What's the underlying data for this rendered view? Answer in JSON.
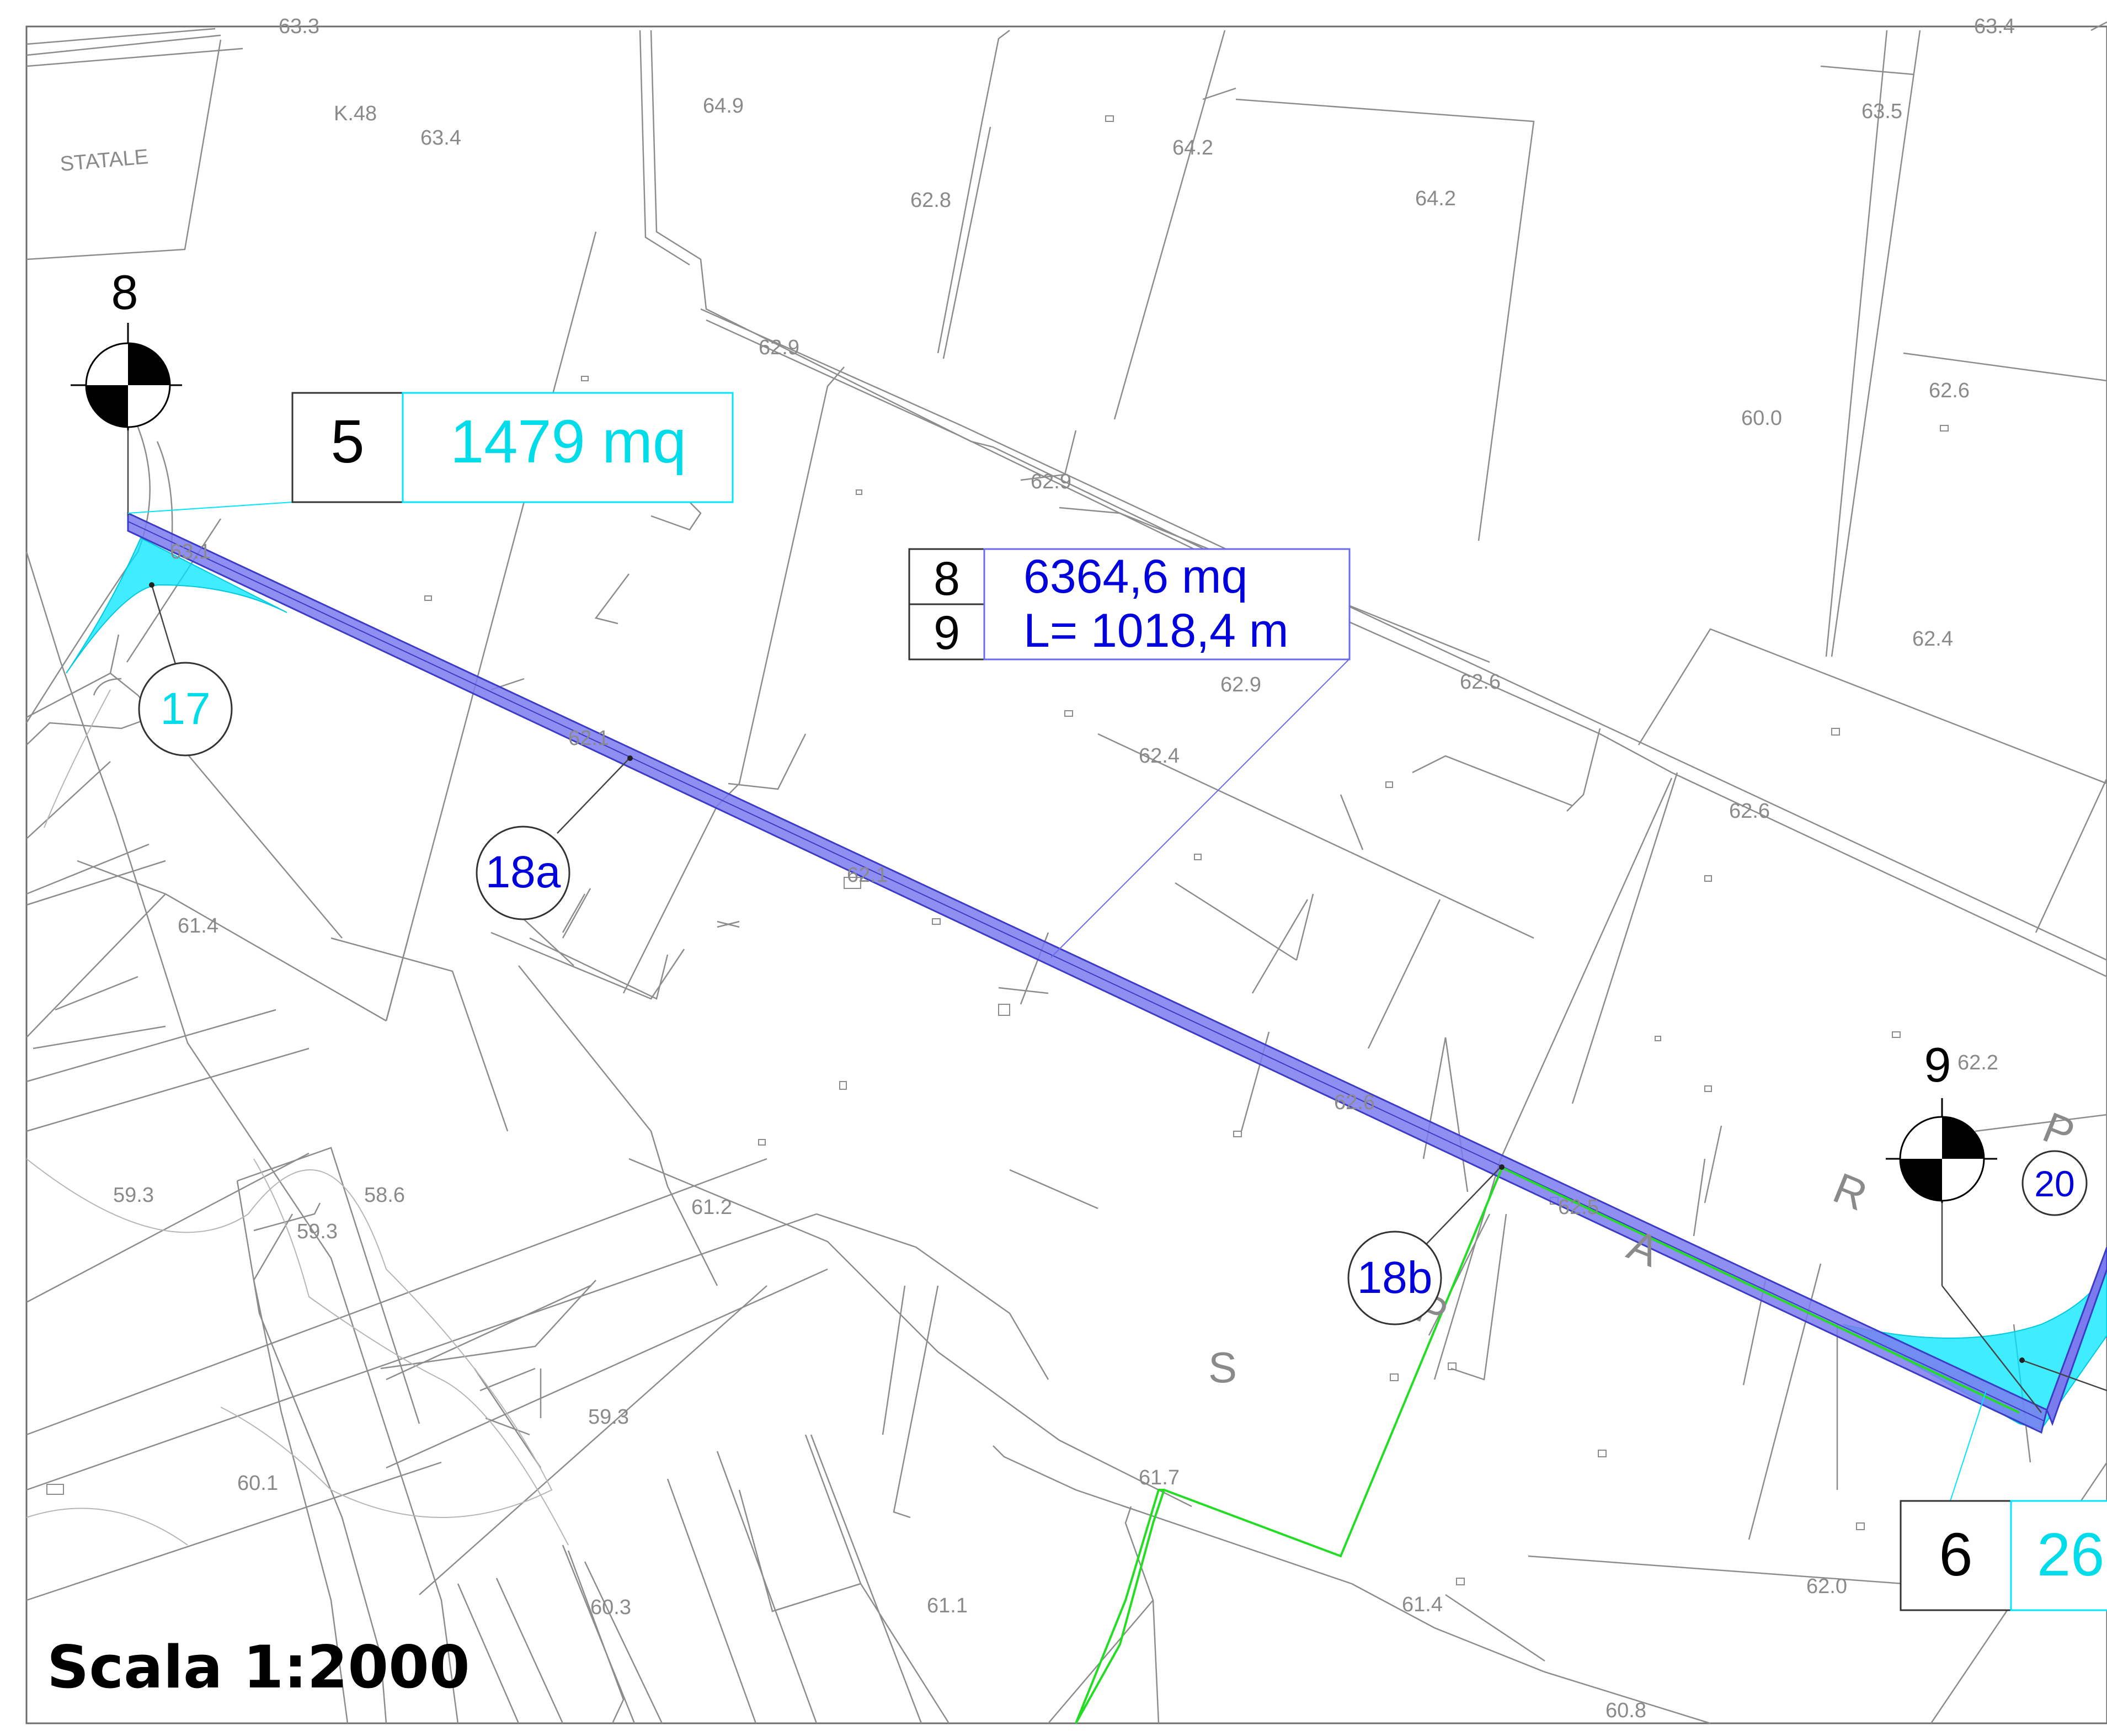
{
  "scale_label": "Scala 1:2000",
  "colors": {
    "parcel_lines": "#8c8c8c",
    "strip_fill": "#7b7bee",
    "strip_stroke": "#3b3bc8",
    "cyan_area": "#00e5ff",
    "cyan_text": "#00dcea",
    "blue_text": "#0000dd",
    "green_boundary": "#22dd22"
  },
  "elevations": [
    "63.3",
    "63.4",
    "64.9",
    "64.2",
    "64.2",
    "62.8",
    "63.5",
    "62.9",
    "62.9",
    "62.6",
    "60.0",
    "63.1",
    "62.1",
    "62.1",
    "62.4",
    "62.9",
    "62.6",
    "62.4",
    "62.6",
    "61.4",
    "62.6",
    "62.2",
    "62.5",
    "59.3",
    "58.6",
    "59.3",
    "61.2",
    "59.3",
    "60.1",
    "61.7",
    "61.4",
    "60.3",
    "61.1",
    "62.0",
    "60.8",
    "63.4"
  ],
  "place_labels": {
    "statale": "STATALE",
    "km": "K.48"
  },
  "road_letters": [
    "S",
    "P",
    "A",
    "R",
    "P"
  ],
  "markers": [
    {
      "id": "8"
    },
    {
      "id": "9"
    }
  ],
  "callouts": [
    {
      "number": "17",
      "color": "cyan"
    },
    {
      "number": "18a",
      "color": "blue"
    },
    {
      "number": "18b",
      "color": "blue"
    },
    {
      "number": "20",
      "color": "blue"
    }
  ],
  "area_box_5": {
    "index": "5",
    "area": "1479 mq"
  },
  "area_box_6": {
    "index": "6",
    "area": "26"
  },
  "segment_box": {
    "from": "8",
    "to": "9",
    "area": "6364,6 mq",
    "length": "L= 1018,4 m"
  }
}
